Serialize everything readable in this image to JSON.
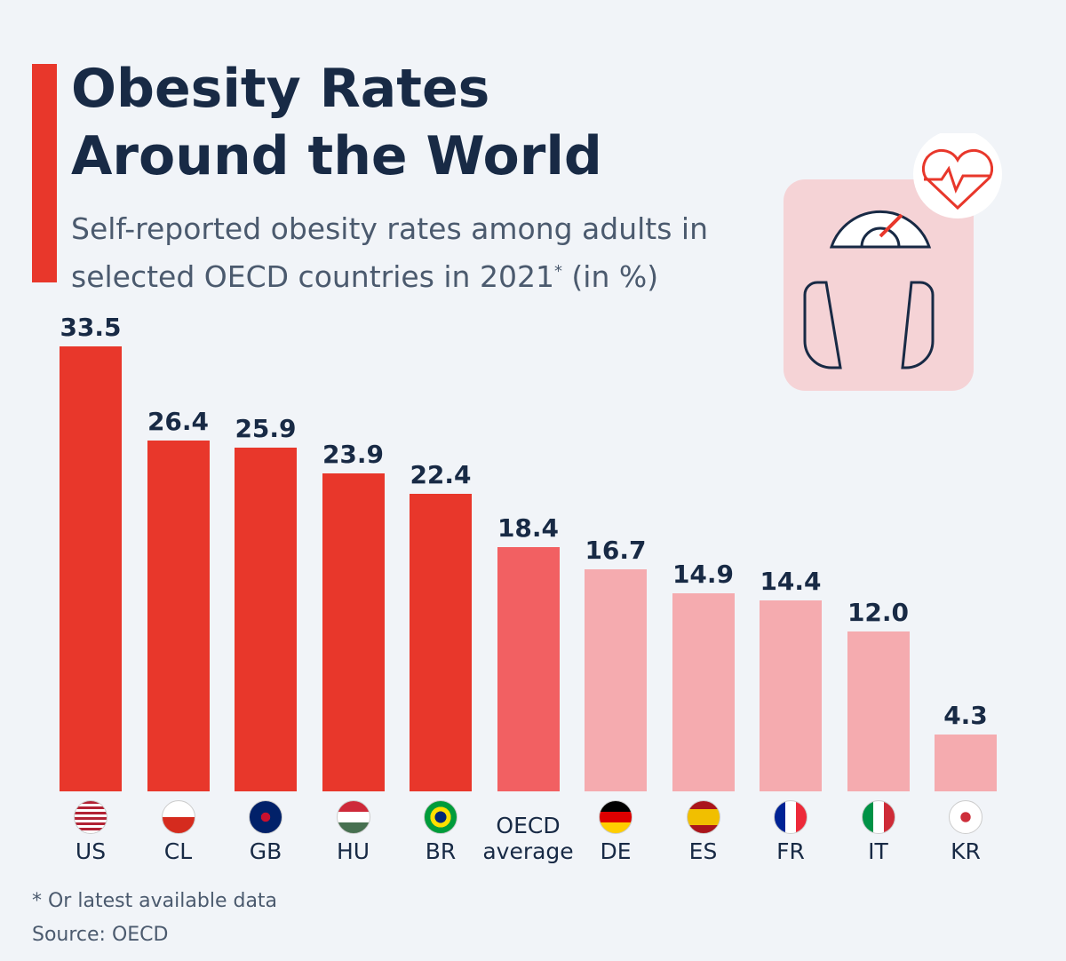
{
  "chart_data": {
    "type": "bar",
    "title": "Obesity Rates Around the World",
    "subtitle": [
      "Self-reported obesity rates among adults in selected OECD countries in 2021",
      "*",
      " (in %)"
    ],
    "categories": [
      "US",
      "CL",
      "GB",
      "HU",
      "BR",
      "OECD average",
      "DE",
      "ES",
      "FR",
      "IT",
      "KR"
    ],
    "values": [
      33.5,
      26.4,
      25.9,
      23.9,
      22.4,
      18.4,
      16.7,
      14.9,
      14.4,
      12.0,
      4.3
    ],
    "value_labels": [
      "33.5",
      "26.4",
      "25.9",
      "23.9",
      "22.4",
      "18.4",
      "16.7",
      "14.9",
      "14.4",
      "12.0",
      "4.3"
    ],
    "colors": [
      "#e8372b",
      "#e8372b",
      "#e8372b",
      "#e8372b",
      "#e8372b",
      "#f26062",
      "#f5abaf",
      "#f5abaf",
      "#f5abaf",
      "#f5abaf",
      "#f5abaf"
    ],
    "footnote": "* Or latest available data",
    "source": "Source: OECD"
  }
}
